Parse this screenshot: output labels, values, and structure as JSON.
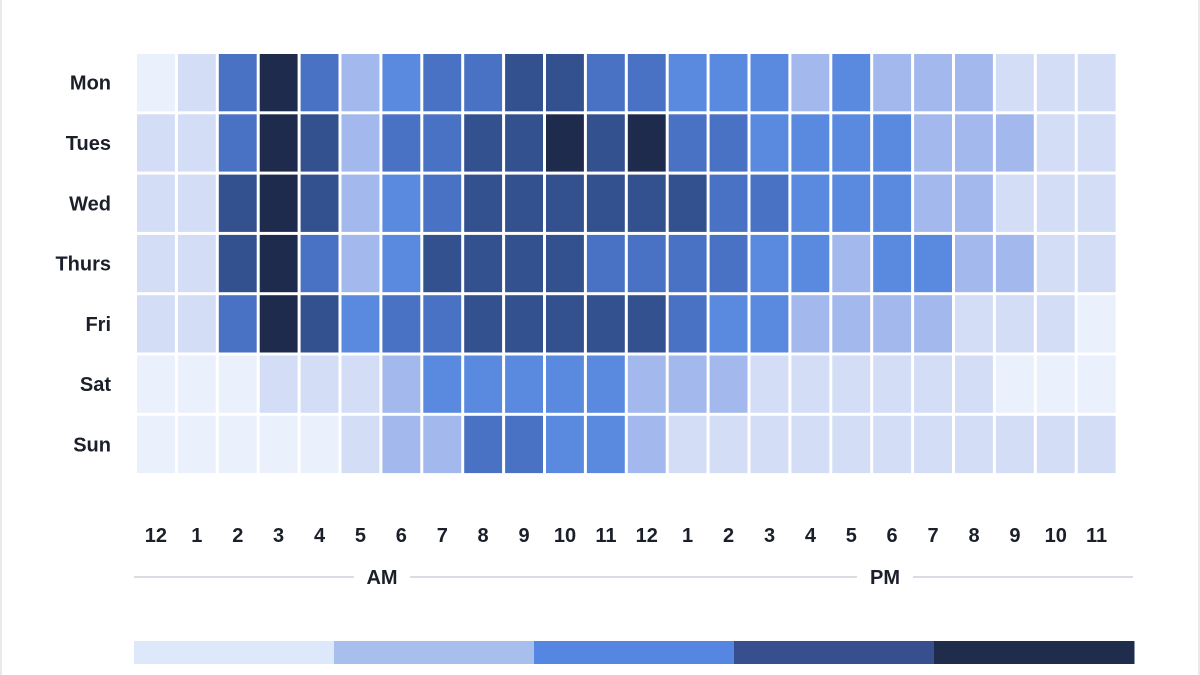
{
  "chart_data": {
    "type": "heatmap",
    "title": "",
    "xlabel": "",
    "ylabel": "",
    "rows": [
      "Mon",
      "Tues",
      "Wed",
      "Thurs",
      "Fri",
      "Sat",
      "Sun"
    ],
    "columns": [
      "12",
      "1",
      "2",
      "3",
      "4",
      "5",
      "6",
      "7",
      "8",
      "9",
      "10",
      "11",
      "12",
      "1",
      "2",
      "3",
      "4",
      "5",
      "6",
      "7",
      "8",
      "9",
      "10",
      "11"
    ],
    "periods": [
      {
        "label": "AM",
        "start_col": 0,
        "end_col": 11
      },
      {
        "label": "PM",
        "start_col": 12,
        "end_col": 23
      }
    ],
    "levels": [
      {
        "level": 0,
        "color": "#eaf0fc"
      },
      {
        "level": 1,
        "color": "#d3def6"
      },
      {
        "level": 2,
        "color": "#a3b8ec"
      },
      {
        "level": 3,
        "color": "#5a8ae0"
      },
      {
        "level": 4,
        "color": "#4a72c4"
      },
      {
        "level": 5,
        "color": "#33508f"
      },
      {
        "level": 6,
        "color": "#1e2b4d"
      }
    ],
    "values": [
      [
        0,
        1,
        4,
        6,
        4,
        2,
        3,
        4,
        4,
        5,
        5,
        4,
        4,
        3,
        3,
        3,
        2,
        3,
        2,
        2,
        2,
        1,
        1,
        1
      ],
      [
        1,
        1,
        4,
        6,
        5,
        2,
        4,
        4,
        5,
        5,
        6,
        5,
        6,
        4,
        4,
        3,
        3,
        3,
        3,
        2,
        2,
        2,
        1,
        1
      ],
      [
        1,
        1,
        5,
        6,
        5,
        2,
        3,
        4,
        5,
        5,
        5,
        5,
        5,
        5,
        4,
        4,
        3,
        3,
        3,
        2,
        2,
        1,
        1,
        1
      ],
      [
        1,
        1,
        5,
        6,
        4,
        2,
        3,
        5,
        5,
        5,
        5,
        4,
        4,
        4,
        4,
        3,
        3,
        2,
        3,
        3,
        2,
        2,
        1,
        1
      ],
      [
        1,
        1,
        4,
        6,
        5,
        3,
        4,
        4,
        5,
        5,
        5,
        5,
        5,
        4,
        3,
        3,
        2,
        2,
        2,
        2,
        1,
        1,
        1,
        0
      ],
      [
        0,
        0,
        0,
        1,
        1,
        1,
        2,
        3,
        3,
        3,
        3,
        3,
        2,
        2,
        2,
        1,
        1,
        1,
        1,
        1,
        1,
        0,
        0,
        0
      ],
      [
        0,
        0,
        0,
        0,
        0,
        1,
        2,
        2,
        4,
        4,
        3,
        3,
        2,
        1,
        1,
        1,
        1,
        1,
        1,
        1,
        1,
        1,
        1,
        1
      ]
    ],
    "legend": {
      "type": "color-scale",
      "placement": "bottom",
      "colors": [
        "#dde8fa",
        "#a8bfee",
        "#5586e2",
        "#374f8f",
        "#1f2c4c"
      ]
    }
  }
}
